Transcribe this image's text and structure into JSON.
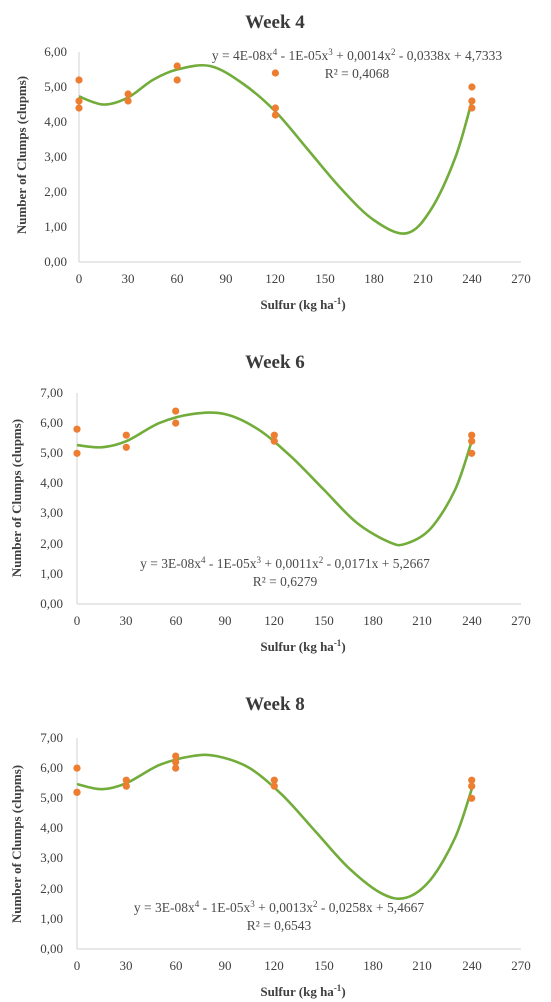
{
  "colors": {
    "points": "#ed7d31",
    "trendline": "#72ac3a",
    "axis": "#d0d0d0",
    "text": "#404040"
  },
  "chart_data": [
    {
      "type": "scatter",
      "title": "Week 4",
      "xlabel": "Sulfur (kg ha",
      "xlabel_sup": "-1",
      "xlabel_end": ")",
      "ylabel": "Number of Clumps (clupms)",
      "xlim": [
        0,
        270
      ],
      "ylim": [
        0,
        6
      ],
      "x_ticks": [
        "0",
        "30",
        "60",
        "90",
        "120",
        "150",
        "180",
        "210",
        "240",
        "270"
      ],
      "y_ticks": [
        "0,00",
        "1,00",
        "2,00",
        "3,00",
        "4,00",
        "5,00",
        "6,00"
      ],
      "points": [
        [
          0,
          5.2
        ],
        [
          0,
          4.6
        ],
        [
          0,
          4.4
        ],
        [
          30,
          4.8
        ],
        [
          30,
          4.6
        ],
        [
          60,
          5.6
        ],
        [
          60,
          5.2
        ],
        [
          120,
          5.4
        ],
        [
          120,
          4.4
        ],
        [
          120,
          4.2
        ],
        [
          240,
          5.0
        ],
        [
          240,
          4.6
        ],
        [
          240,
          4.4
        ]
      ],
      "trendline": {
        "type": "polynomial",
        "order": 4,
        "samples": [
          [
            0,
            4.73
          ],
          [
            15,
            4.5
          ],
          [
            30,
            4.7
          ],
          [
            45,
            5.2
          ],
          [
            60,
            5.5
          ],
          [
            80,
            5.6
          ],
          [
            100,
            5.1
          ],
          [
            120,
            4.3
          ],
          [
            140,
            3.2
          ],
          [
            160,
            2.1
          ],
          [
            180,
            1.2
          ],
          [
            200,
            0.82
          ],
          [
            215,
            1.5
          ],
          [
            230,
            3.0
          ],
          [
            240,
            4.6
          ]
        ]
      },
      "equation": {
        "parts": [
          "y = 4E-08x",
          "4",
          " - 1E-05x",
          "3",
          " + 0,0014x",
          "2",
          " - 0,0338x + 4,7333"
        ],
        "r2_label": "R² = 0,4068",
        "position": "top-right"
      }
    },
    {
      "type": "scatter",
      "title": "Week 6",
      "xlabel": "Sulfur (kg ha",
      "xlabel_sup": "-1",
      "xlabel_end": ")",
      "ylabel": "Number of Clumps (clupms)",
      "xlim": [
        0,
        270
      ],
      "ylim": [
        0,
        7
      ],
      "x_ticks": [
        "0",
        "30",
        "60",
        "90",
        "120",
        "150",
        "180",
        "210",
        "240",
        "270"
      ],
      "y_ticks": [
        "0,00",
        "1,00",
        "2,00",
        "3,00",
        "4,00",
        "5,00",
        "6,00",
        "7,00"
      ],
      "points": [
        [
          0,
          5.8
        ],
        [
          0,
          5.0
        ],
        [
          30,
          5.6
        ],
        [
          30,
          5.2
        ],
        [
          60,
          6.4
        ],
        [
          60,
          6.0
        ],
        [
          120,
          5.6
        ],
        [
          120,
          5.4
        ],
        [
          240,
          5.6
        ],
        [
          240,
          5.4
        ],
        [
          240,
          5.0
        ]
      ],
      "trendline": {
        "type": "polynomial",
        "order": 4,
        "samples": [
          [
            0,
            5.27
          ],
          [
            15,
            5.2
          ],
          [
            30,
            5.4
          ],
          [
            50,
            6.0
          ],
          [
            70,
            6.3
          ],
          [
            90,
            6.3
          ],
          [
            110,
            5.8
          ],
          [
            130,
            4.9
          ],
          [
            150,
            3.8
          ],
          [
            170,
            2.7
          ],
          [
            190,
            2.05
          ],
          [
            200,
            2.0
          ],
          [
            215,
            2.5
          ],
          [
            230,
            3.8
          ],
          [
            240,
            5.4
          ]
        ]
      },
      "equation": {
        "parts": [
          "y = 3E-08x",
          "4",
          " - 1E-05x",
          "3",
          " + 0,0011x",
          "2",
          " - 0,0171x + 5,2667"
        ],
        "r2_label": "R² = 0,6279",
        "position": "bottom-center"
      }
    },
    {
      "type": "scatter",
      "title": "Week 8",
      "xlabel": "Sulfur (kg ha",
      "xlabel_sup": "-1",
      "xlabel_end": ")",
      "ylabel": "Number of Clumps (clupms)",
      "xlim": [
        0,
        270
      ],
      "ylim": [
        0,
        7
      ],
      "x_ticks": [
        "0",
        "30",
        "60",
        "90",
        "120",
        "150",
        "180",
        "210",
        "240",
        "270"
      ],
      "y_ticks": [
        "0,00",
        "1,00",
        "2,00",
        "3,00",
        "4,00",
        "5,00",
        "6,00",
        "7,00"
      ],
      "points": [
        [
          0,
          6.0
        ],
        [
          0,
          5.2
        ],
        [
          0,
          5.2
        ],
        [
          30,
          5.6
        ],
        [
          30,
          5.4
        ],
        [
          60,
          6.4
        ],
        [
          60,
          6.2
        ],
        [
          60,
          6.0
        ],
        [
          120,
          5.6
        ],
        [
          120,
          5.4
        ],
        [
          240,
          5.6
        ],
        [
          240,
          5.4
        ],
        [
          240,
          5.0
        ]
      ],
      "trendline": {
        "type": "polynomial",
        "order": 4,
        "samples": [
          [
            0,
            5.47
          ],
          [
            15,
            5.3
          ],
          [
            30,
            5.5
          ],
          [
            50,
            6.1
          ],
          [
            70,
            6.4
          ],
          [
            85,
            6.4
          ],
          [
            105,
            6.0
          ],
          [
            125,
            5.1
          ],
          [
            145,
            3.9
          ],
          [
            165,
            2.7
          ],
          [
            185,
            1.85
          ],
          [
            200,
            1.7
          ],
          [
            215,
            2.3
          ],
          [
            230,
            3.7
          ],
          [
            240,
            5.3
          ]
        ]
      },
      "equation": {
        "parts": [
          "y = 3E-08x",
          "4",
          " - 1E-05x",
          "3",
          " + 0,0013x",
          "2",
          " - 0,0258x + 5,4667"
        ],
        "r2_label": "R² = 0,6543",
        "position": "bottom-center"
      }
    }
  ]
}
